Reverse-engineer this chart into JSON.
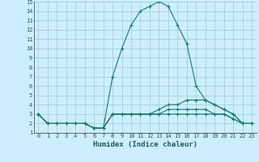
{
  "xlabel": "Humidex (Indice chaleur)",
  "bg_color": "#cceeff",
  "line_color": "#1a7a6e",
  "grid_color": "#99cccc",
  "xlim": [
    -0.5,
    23.5
  ],
  "ylim": [
    1,
    15
  ],
  "yticks": [
    1,
    2,
    3,
    4,
    5,
    6,
    7,
    8,
    9,
    10,
    11,
    12,
    13,
    14,
    15
  ],
  "xticks": [
    0,
    1,
    2,
    3,
    4,
    5,
    6,
    7,
    8,
    9,
    10,
    11,
    12,
    13,
    14,
    15,
    16,
    17,
    18,
    19,
    20,
    21,
    22,
    23
  ],
  "series": [
    {
      "x": [
        0,
        1,
        2,
        3,
        4,
        5,
        6,
        7,
        8,
        9,
        10,
        11,
        12,
        13,
        14,
        15,
        16,
        17,
        18,
        19,
        20,
        21,
        22,
        23
      ],
      "y": [
        3,
        2,
        2,
        2,
        2,
        2,
        1.5,
        1.5,
        7,
        10,
        12.5,
        14,
        14.5,
        15,
        14.5,
        12.5,
        10.5,
        6,
        4.5,
        4,
        3.5,
        3,
        2,
        2
      ]
    },
    {
      "x": [
        0,
        1,
        2,
        3,
        4,
        5,
        6,
        7,
        8,
        9,
        10,
        11,
        12,
        13,
        14,
        15,
        16,
        17,
        18,
        19,
        20,
        21,
        22,
        23
      ],
      "y": [
        3,
        2,
        2,
        2,
        2,
        2,
        1.5,
        1.5,
        3,
        3,
        3,
        3,
        3,
        3.5,
        4,
        4,
        4.5,
        4.5,
        4.5,
        4,
        3.5,
        3,
        2,
        2
      ]
    },
    {
      "x": [
        0,
        1,
        2,
        3,
        4,
        5,
        6,
        7,
        8,
        9,
        10,
        11,
        12,
        13,
        14,
        15,
        16,
        17,
        18,
        19,
        20,
        21,
        22,
        23
      ],
      "y": [
        3,
        2,
        2,
        2,
        2,
        2,
        1.5,
        1.5,
        3,
        3,
        3,
        3,
        3,
        3,
        3.5,
        3.5,
        3.5,
        3.5,
        3.5,
        3,
        3,
        2.5,
        2,
        2
      ]
    },
    {
      "x": [
        0,
        1,
        2,
        3,
        4,
        5,
        6,
        7,
        8,
        9,
        10,
        11,
        12,
        13,
        14,
        15,
        16,
        17,
        18,
        19,
        20,
        21,
        22,
        23
      ],
      "y": [
        3,
        2,
        2,
        2,
        2,
        2,
        1.5,
        1.5,
        3,
        3,
        3,
        3,
        3,
        3,
        3,
        3,
        3,
        3,
        3,
        3,
        3,
        2.5,
        2,
        2
      ]
    }
  ]
}
